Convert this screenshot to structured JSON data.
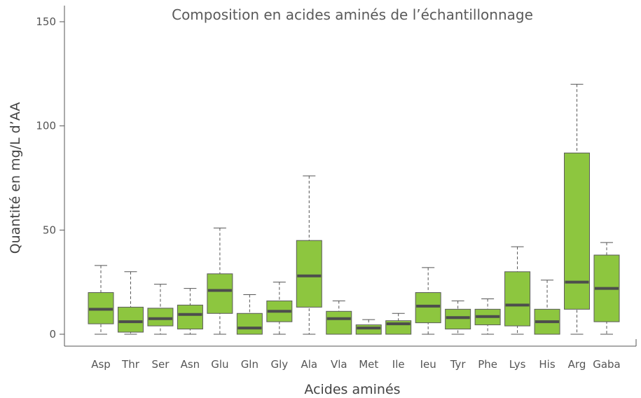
{
  "chart_data": {
    "type": "box",
    "title": "Composition en acides aminés de l’échantillonnage",
    "xlabel": "Acides aminés",
    "ylabel": "Quantité en mg/L d’AA",
    "ylim": [
      0,
      150
    ],
    "yticks": [
      0,
      50,
      100,
      150
    ],
    "categories": [
      "Asp",
      "Thr",
      "Ser",
      "Asn",
      "Glu",
      "Gln",
      "Gly",
      "Ala",
      "Vla",
      "Met",
      "Ile",
      "Ieu",
      "Tyr",
      "Phe",
      "Lys",
      "His",
      "Arg",
      "Gaba"
    ],
    "boxes": [
      {
        "min": 0,
        "q1": 5,
        "median": 12,
        "q3": 20,
        "max": 33
      },
      {
        "min": 0,
        "q1": 1,
        "median": 6,
        "q3": 13,
        "max": 30
      },
      {
        "min": 0,
        "q1": 4,
        "median": 7.5,
        "q3": 12.5,
        "max": 24
      },
      {
        "min": 0,
        "q1": 2.5,
        "median": 9.5,
        "q3": 14,
        "max": 22
      },
      {
        "min": 0,
        "q1": 10,
        "median": 21,
        "q3": 29,
        "max": 51
      },
      {
        "min": 0,
        "q1": 0,
        "median": 3,
        "q3": 10,
        "max": 19
      },
      {
        "min": 0,
        "q1": 6,
        "median": 11,
        "q3": 16,
        "max": 25
      },
      {
        "min": 0,
        "q1": 13,
        "median": 28,
        "q3": 45,
        "max": 76
      },
      {
        "min": 0,
        "q1": 0,
        "median": 7.5,
        "q3": 11,
        "max": 16
      },
      {
        "min": 0,
        "q1": 0,
        "median": 3,
        "q3": 4.5,
        "max": 7
      },
      {
        "min": 0,
        "q1": 0,
        "median": 5,
        "q3": 6.5,
        "max": 10
      },
      {
        "min": 0,
        "q1": 5.5,
        "median": 13.5,
        "q3": 20,
        "max": 32
      },
      {
        "min": 0,
        "q1": 2.5,
        "median": 8,
        "q3": 12,
        "max": 16
      },
      {
        "min": 0,
        "q1": 4.5,
        "median": 8.5,
        "q3": 12,
        "max": 17
      },
      {
        "min": 0,
        "q1": 4,
        "median": 14,
        "q3": 30,
        "max": 42
      },
      {
        "min": 0,
        "q1": 0,
        "median": 6,
        "q3": 12,
        "max": 26
      },
      {
        "min": 0,
        "q1": 12,
        "median": 25,
        "q3": 87,
        "max": 120
      },
      {
        "min": 0,
        "q1": 6,
        "median": 22,
        "q3": 38,
        "max": 44
      }
    ],
    "colors": {
      "box_fill": "#8dc63f",
      "box_stroke": "#5a5a5a",
      "median": "#4d4d4d",
      "whisker": "#555555",
      "axis": "#555555"
    },
    "grid": false,
    "legend": "none"
  }
}
